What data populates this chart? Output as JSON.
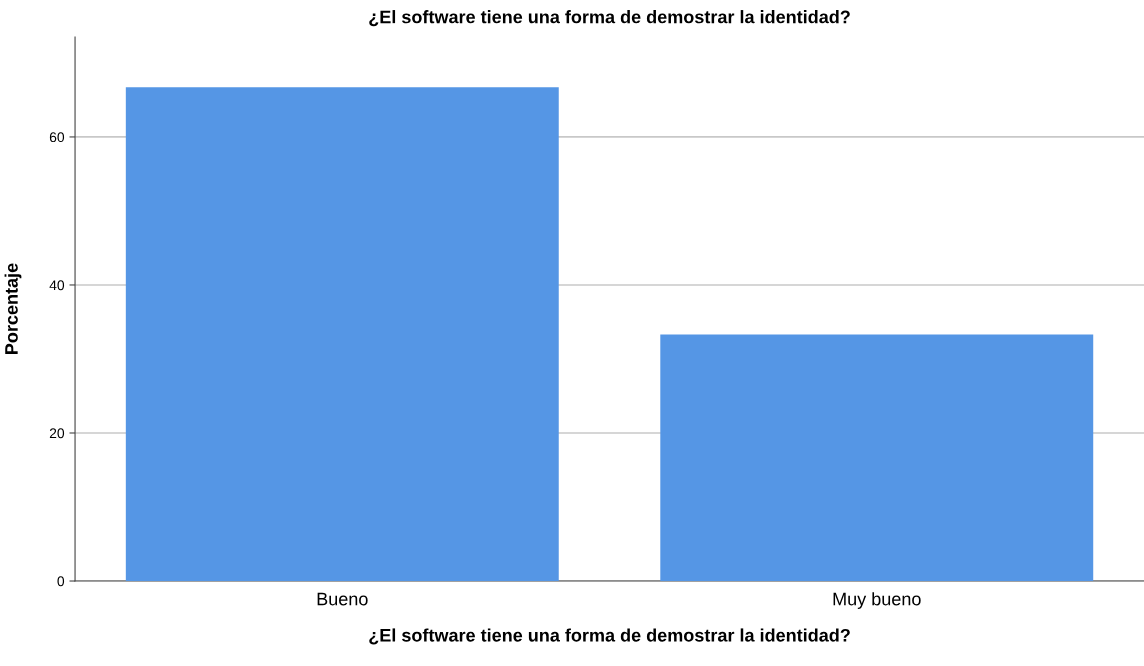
{
  "chart_data": {
    "type": "bar",
    "title": "¿El software tiene una forma de demostrar la identidad?",
    "xlabel": "¿El software tiene una forma de demostrar la identidad?",
    "ylabel": "Porcentaje",
    "categories": [
      "Bueno",
      "Muy bueno"
    ],
    "values": [
      66.7,
      33.3
    ],
    "color": "#5596e5",
    "ylim": [
      0,
      73.5
    ],
    "yticks": [
      0,
      20,
      40,
      60
    ],
    "grid": "y"
  }
}
